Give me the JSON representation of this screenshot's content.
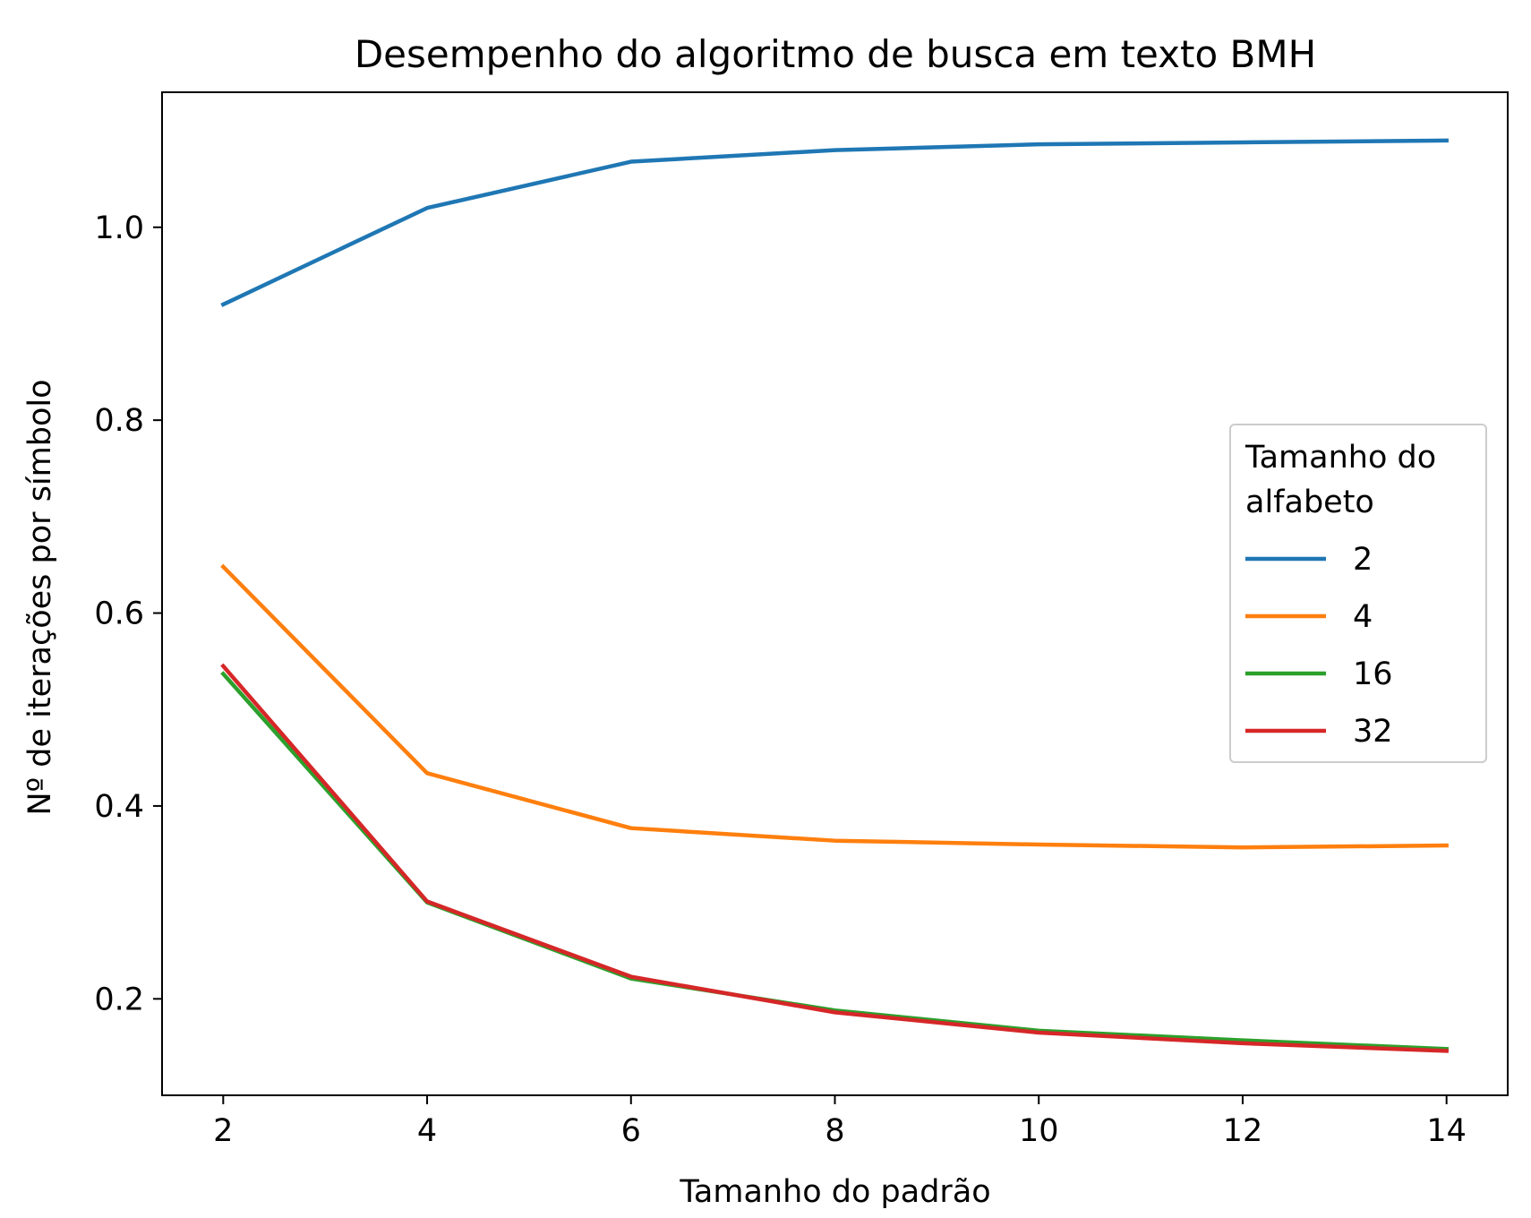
{
  "chart_data": {
    "type": "line",
    "title": "Desempenho do algoritmo de busca em texto BMH",
    "xlabel": "Tamanho do padrão",
    "ylabel": "Nº de iterações por símbolo",
    "x": [
      2,
      4,
      6,
      8,
      10,
      12,
      14
    ],
    "xlim": [
      1.4,
      14.6
    ],
    "ylim": [
      0.1,
      1.14
    ],
    "xticks": [
      2,
      4,
      6,
      8,
      10,
      12,
      14
    ],
    "yticks": [
      0.2,
      0.4,
      0.6,
      0.8,
      1.0
    ],
    "ytick_labels": [
      "0.2",
      "0.4",
      "0.6",
      "0.8",
      "1.0"
    ],
    "grid": false,
    "legend": {
      "title": "Tamanho do\nalfabeto",
      "title_lines": [
        "Tamanho do",
        "alfabeto"
      ],
      "placement": "center-right"
    },
    "series": [
      {
        "name": "2",
        "color": "#1f77b4",
        "values": [
          0.92,
          1.02,
          1.068,
          1.08,
          1.086,
          1.088,
          1.09
        ]
      },
      {
        "name": "4",
        "color": "#ff7f0e",
        "values": [
          0.648,
          0.434,
          0.377,
          0.364,
          0.36,
          0.357,
          0.359
        ]
      },
      {
        "name": "16",
        "color": "#2ca02c",
        "values": [
          0.537,
          0.3,
          0.221,
          0.188,
          0.167,
          0.157,
          0.148
        ]
      },
      {
        "name": "32",
        "color": "#d62728",
        "values": [
          0.545,
          0.301,
          0.223,
          0.186,
          0.165,
          0.154,
          0.146
        ]
      }
    ]
  }
}
